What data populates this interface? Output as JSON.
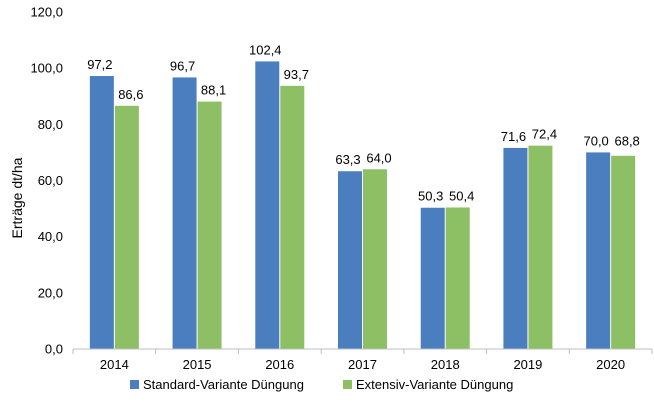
{
  "chart_data": {
    "type": "bar",
    "title": "",
    "xlabel": "",
    "ylabel": "Erträge dt/ha",
    "ylim": [
      0,
      120
    ],
    "y_ticks": [
      "0,0",
      "20,0",
      "40,0",
      "60,0",
      "80,0",
      "100,0",
      "120,0"
    ],
    "y_tick_values": [
      0,
      20,
      40,
      60,
      80,
      100,
      120
    ],
    "categories": [
      "2014",
      "2015",
      "2016",
      "2017",
      "2018",
      "2019",
      "2020"
    ],
    "series": [
      {
        "name": "Standard-Variante Düngung",
        "color": "#4a7ebf",
        "values": [
          97.2,
          96.7,
          102.4,
          63.3,
          50.3,
          71.6,
          70.0
        ],
        "labels": [
          "97,2",
          "96,7",
          "102,4",
          "63,3",
          "50,3",
          "71,6",
          "70,0"
        ]
      },
      {
        "name": "Extensiv-Variante Düngung",
        "color": "#8dbf65",
        "values": [
          86.6,
          88.1,
          93.7,
          64.0,
          50.4,
          72.4,
          68.8
        ],
        "labels": [
          "86,6",
          "88,1",
          "93,7",
          "64,0",
          "50,4",
          "72,4",
          "68,8"
        ]
      }
    ],
    "grid": false,
    "legend_position": "bottom"
  }
}
